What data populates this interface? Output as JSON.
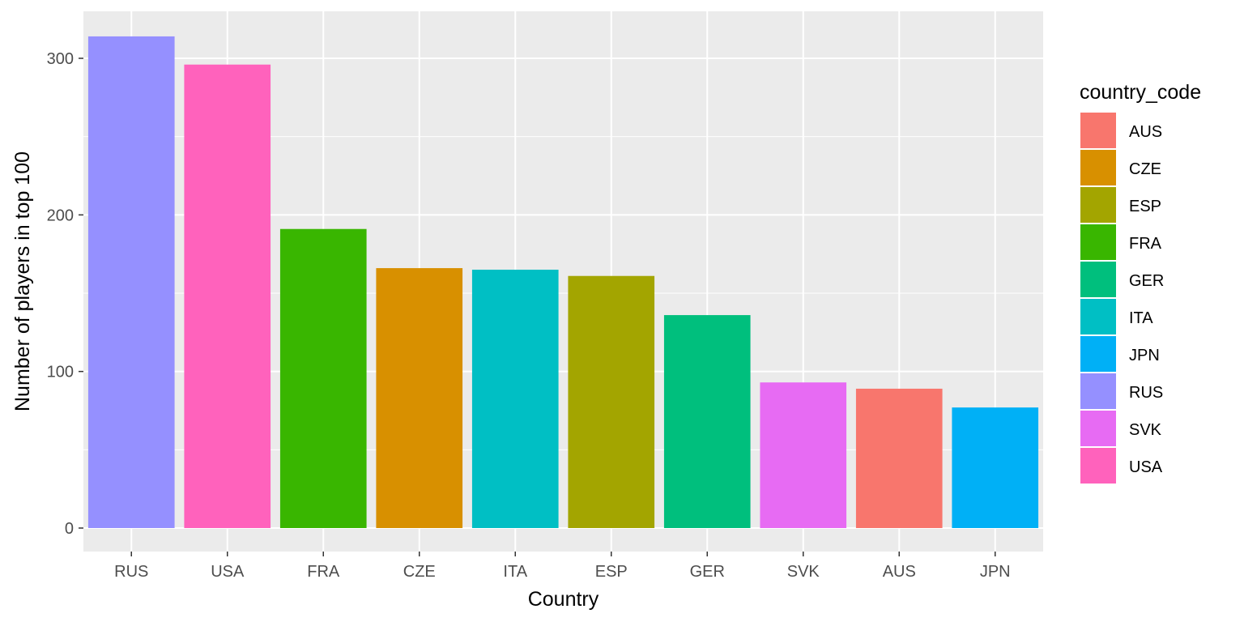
{
  "chart_data": {
    "type": "bar",
    "categories": [
      "RUS",
      "USA",
      "FRA",
      "CZE",
      "ITA",
      "ESP",
      "GER",
      "SVK",
      "AUS",
      "JPN"
    ],
    "values": [
      314,
      296,
      191,
      166,
      165,
      161,
      136,
      93,
      89,
      77
    ],
    "bar_colors": [
      "#9590FF",
      "#FF62BC",
      "#39B600",
      "#D89000",
      "#00BFC4",
      "#A3A500",
      "#00BF7D",
      "#E76BF3",
      "#F8766D",
      "#00B0F6"
    ],
    "xlabel": "Country",
    "ylabel": "Number of players in top 100",
    "ylim": [
      -15,
      330
    ],
    "yticks": [
      0,
      100,
      200,
      300
    ],
    "grid": true,
    "panel_background": "#EBEBEB",
    "grid_color": "#FFFFFF",
    "legend": {
      "title": "country_code",
      "position": "right",
      "items": [
        {
          "label": "AUS",
          "color": "#F8766D"
        },
        {
          "label": "CZE",
          "color": "#D89000"
        },
        {
          "label": "ESP",
          "color": "#A3A500"
        },
        {
          "label": "FRA",
          "color": "#39B600"
        },
        {
          "label": "GER",
          "color": "#00BF7D"
        },
        {
          "label": "ITA",
          "color": "#00BFC4"
        },
        {
          "label": "JPN",
          "color": "#00B0F6"
        },
        {
          "label": "RUS",
          "color": "#9590FF"
        },
        {
          "label": "SVK",
          "color": "#E76BF3"
        },
        {
          "label": "USA",
          "color": "#FF62BC"
        }
      ]
    }
  }
}
